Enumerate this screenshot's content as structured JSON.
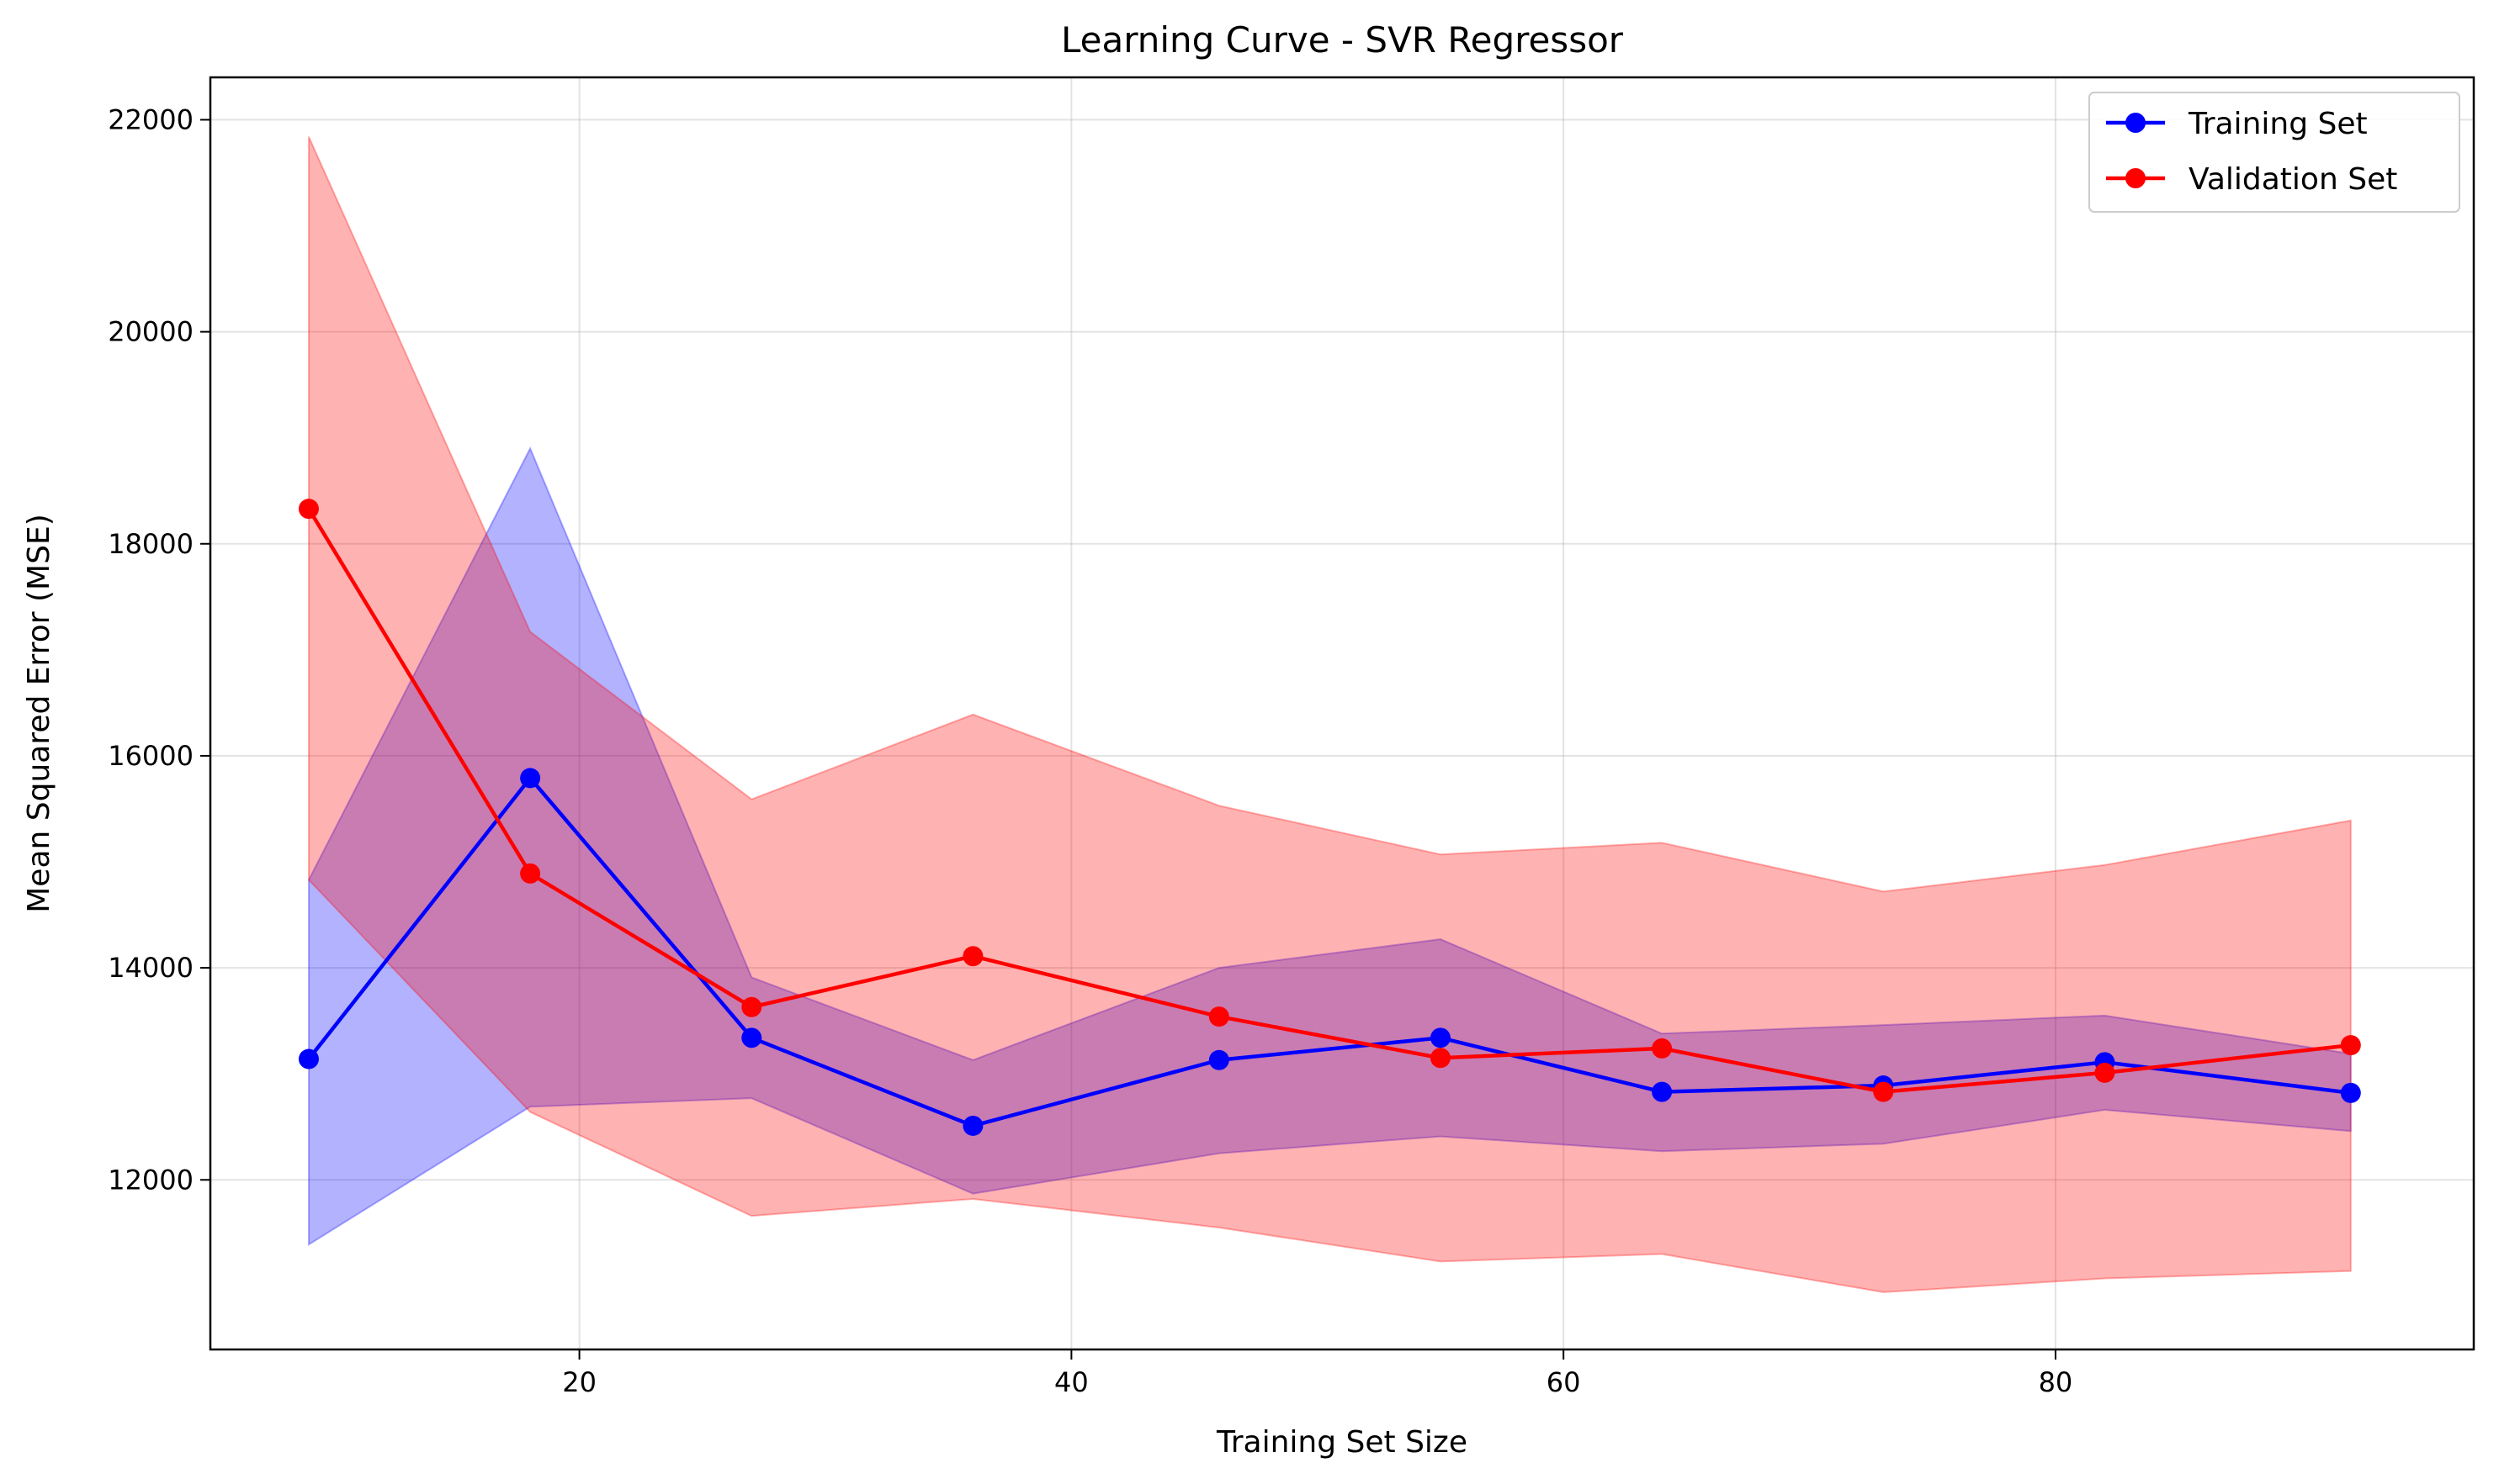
{
  "chart_data": {
    "type": "line",
    "title": "Learning Curve - SVR Regressor",
    "xlabel": "Training Set Size",
    "ylabel": "Mean Squared Error (MSE)",
    "xlim": [
      5,
      97
    ],
    "ylim": [
      10400,
      22400
    ],
    "x_ticks": [
      20,
      40,
      60,
      80
    ],
    "y_ticks": [
      12000,
      14000,
      16000,
      18000,
      20000,
      22000
    ],
    "grid": true,
    "legend_position": "top-right",
    "x": [
      9,
      18,
      27,
      36,
      46,
      55,
      64,
      73,
      82,
      92
    ],
    "series": [
      {
        "name": "Training Set",
        "color": "#0000ff",
        "band_color": "#0000ff",
        "values": [
          13140,
          15790,
          13340,
          12510,
          13130,
          13340,
          12830,
          12890,
          13110,
          12820
        ],
        "upper": [
          14830,
          18900,
          13910,
          13130,
          14000,
          14270,
          13380,
          13460,
          13550,
          13190
        ],
        "lower": [
          11390,
          12690,
          12770,
          11870,
          12250,
          12410,
          12270,
          12340,
          12660,
          12460
        ]
      },
      {
        "name": "Validation Set",
        "color": "#ff0000",
        "band_color": "#ff0000",
        "values": [
          18330,
          14890,
          13630,
          14110,
          13540,
          13150,
          13240,
          12830,
          13010,
          13270
        ],
        "upper": [
          21840,
          17170,
          15590,
          16390,
          15530,
          15070,
          15180,
          14720,
          14970,
          15390
        ],
        "lower": [
          14830,
          12640,
          11660,
          11820,
          11550,
          11230,
          11300,
          10940,
          11070,
          11140
        ]
      }
    ]
  }
}
